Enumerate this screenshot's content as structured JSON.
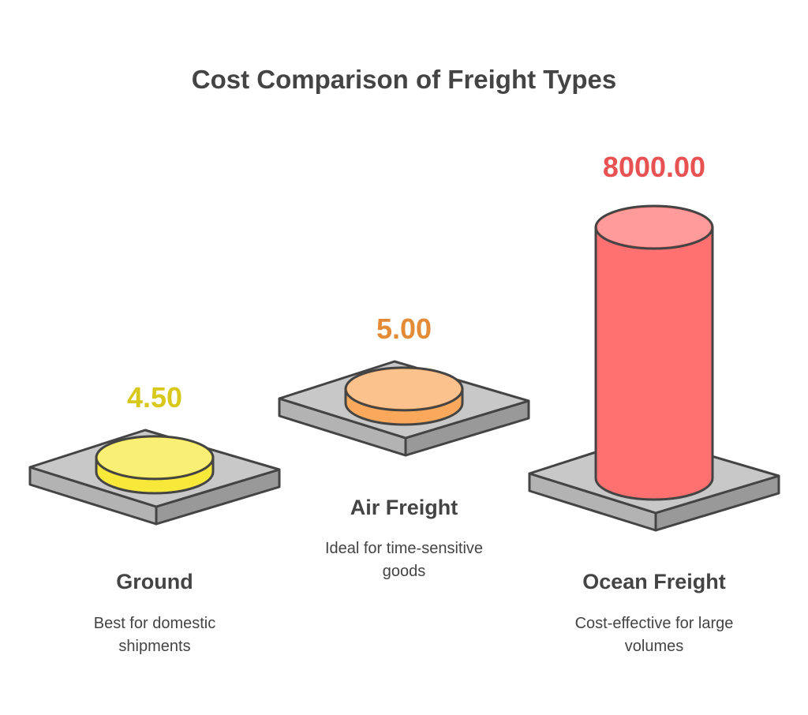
{
  "chart_data": {
    "type": "cylinder",
    "title": "Cost Comparison of Freight Types",
    "categories": [
      "Ground",
      "Air Freight",
      "Ocean Freight"
    ],
    "descriptions": [
      "Best for domestic shipments",
      "Ideal for time-sensitive goods",
      "Cost-effective for large volumes"
    ],
    "values": [
      4.5,
      5,
      8000
    ],
    "value_labels": [
      "4.50",
      "5.00",
      "8000.00"
    ],
    "colors": [
      "#f7e83a",
      "#f9a85c",
      "#ff7070"
    ],
    "label_colors": [
      "#d9c81c",
      "#e38b36",
      "#e85252"
    ]
  }
}
